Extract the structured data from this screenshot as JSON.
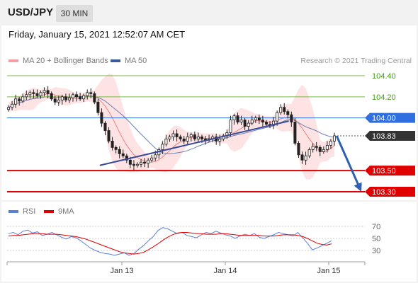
{
  "header": {
    "pair": "USD/JPY",
    "timeframe": "30 MIN"
  },
  "timestamp": "Friday, January 15, 2021 12:52:07 AM CET",
  "legend": {
    "ma20": {
      "label": "MA 20 + Bollinger Bands",
      "color": "#f08080"
    },
    "ma50": {
      "label": "MA 50",
      "color": "#3a5a9a"
    }
  },
  "credit": "Research © 2021 Trading Central",
  "rsi_legend": {
    "rsi": {
      "label": "RSI",
      "color": "#5b7fd6"
    },
    "ma9": {
      "label": "9MA",
      "color": "#e00000"
    }
  },
  "chart_data": [
    {
      "type": "candlestick",
      "title": "USD/JPY 30 MIN",
      "ylim": [
        103.2,
        104.45
      ],
      "x_ticks": [
        "Jan 13",
        "Jan 14",
        "Jan 15"
      ],
      "levels": [
        {
          "value": 104.4,
          "label": "104.40",
          "kind": "resistance",
          "color": "#7ab648"
        },
        {
          "value": 104.2,
          "label": "104.20",
          "kind": "resistance",
          "color": "#7ab648"
        },
        {
          "value": 104.0,
          "label": "104.00",
          "kind": "pivot",
          "color": "#2f6fe0"
        },
        {
          "value": 103.83,
          "label": "103.83",
          "kind": "last",
          "color": "#333333"
        },
        {
          "value": 103.5,
          "label": "103.50",
          "kind": "support",
          "color": "#e00000"
        },
        {
          "value": 103.3,
          "label": "103.30",
          "kind": "support",
          "color": "#e00000"
        }
      ],
      "trendline": [
        {
          "x": 0.28,
          "y": 103.55
        },
        {
          "x": 0.86,
          "y": 103.97
        }
      ],
      "forecast_arrow": [
        {
          "x": 0.93,
          "y": 103.83
        },
        {
          "x": 1.0,
          "y": 103.3
        }
      ],
      "closes": [
        104.1,
        104.13,
        104.18,
        104.16,
        104.2,
        104.22,
        104.24,
        104.23,
        104.21,
        104.24,
        104.26,
        104.23,
        104.18,
        104.15,
        104.17,
        104.2,
        104.17,
        104.19,
        104.22,
        104.2,
        104.18,
        104.21,
        104.24,
        104.23,
        104.15,
        104.05,
        103.95,
        103.88,
        103.78,
        103.72,
        103.7,
        103.66,
        103.64,
        103.6,
        103.56,
        103.55,
        103.56,
        103.58,
        103.57,
        103.6,
        103.62,
        103.65,
        103.7,
        103.75,
        103.8,
        103.82,
        103.85,
        103.82,
        103.8,
        103.78,
        103.82,
        103.84,
        103.8,
        103.82,
        103.8,
        103.79,
        103.8,
        103.82,
        103.78,
        103.8,
        103.83,
        103.86,
        103.98,
        104.02,
        103.96,
        103.98,
        103.92,
        103.95,
        103.98,
        104.0,
        103.98,
        103.96,
        103.94,
        103.93,
        103.97,
        104.05,
        104.1,
        104.06,
        104.03,
        103.96,
        103.76,
        103.65,
        103.6,
        103.64,
        103.7,
        103.73,
        103.72,
        103.68,
        103.7,
        103.74,
        103.78,
        103.83
      ]
    },
    {
      "type": "line",
      "title": "RSI",
      "ylim": [
        10,
        80
      ],
      "y_ticks": [
        30,
        50,
        70
      ],
      "series": [
        {
          "name": "RSI",
          "values": [
            58,
            60,
            56,
            62,
            64,
            59,
            61,
            55,
            57,
            60,
            56,
            52,
            49,
            53,
            51,
            46,
            40,
            34,
            30,
            27,
            25,
            24,
            22,
            24,
            26,
            22,
            25,
            32,
            38,
            46,
            53,
            63,
            68,
            66,
            62,
            58,
            60,
            55,
            53,
            51,
            56,
            60,
            58,
            62,
            59,
            56,
            54,
            50,
            54,
            57,
            55,
            58,
            52,
            50,
            53,
            56,
            60,
            58,
            56,
            54,
            60,
            51,
            42,
            31,
            34,
            38,
            42,
            46
          ]
        },
        {
          "name": "9MA",
          "values": [
            54,
            55,
            55,
            56,
            57,
            58,
            58,
            58,
            57,
            57,
            57,
            56,
            55,
            54,
            53,
            51,
            49,
            46,
            43,
            40,
            37,
            34,
            31,
            28,
            26,
            25,
            24,
            25,
            27,
            31,
            36,
            41,
            47,
            52,
            56,
            59,
            60,
            60,
            59,
            58,
            58,
            57,
            57,
            57,
            58,
            58,
            57,
            56,
            55,
            55,
            55,
            55,
            55,
            54,
            54,
            54,
            55,
            56,
            56,
            56,
            55,
            53,
            50,
            46,
            42,
            40,
            39,
            41
          ]
        }
      ]
    }
  ]
}
